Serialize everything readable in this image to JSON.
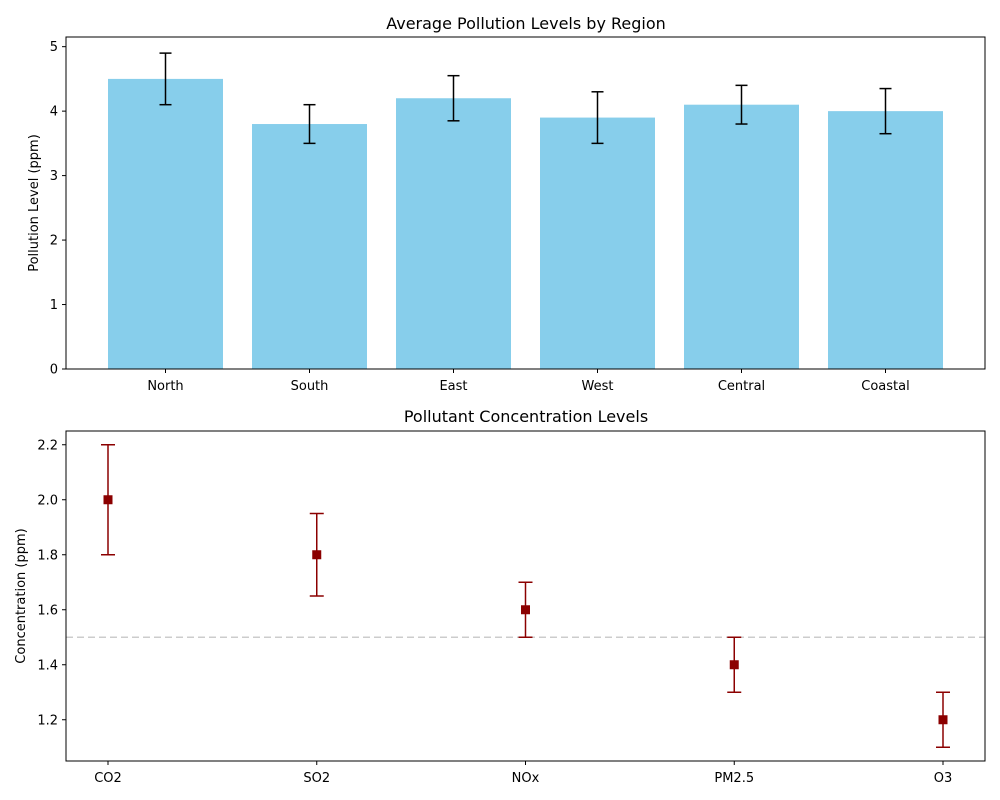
{
  "chart_data": [
    {
      "type": "bar",
      "title": "Average Pollution Levels by Region",
      "xlabel": "",
      "ylabel": "Pollution Level (ppm)",
      "categories": [
        "North",
        "South",
        "East",
        "West",
        "Central",
        "Coastal"
      ],
      "values": [
        4.5,
        3.8,
        4.2,
        3.9,
        4.1,
        4.0
      ],
      "errors": [
        0.4,
        0.3,
        0.35,
        0.4,
        0.3,
        0.35
      ],
      "ylim": [
        0,
        5.15
      ],
      "yticks": [
        0,
        1,
        2,
        3,
        4,
        5
      ],
      "bar_color": "#87ceeb",
      "error_color": "#000000",
      "grid": false
    },
    {
      "type": "scatter",
      "title": "Pollutant Concentration Levels",
      "xlabel": "",
      "ylabel": "Concentration (ppm)",
      "categories": [
        "CO2",
        "SO2",
        "NOx",
        "PM2.5",
        "O3"
      ],
      "values": [
        2.0,
        1.8,
        1.6,
        1.4,
        1.2
      ],
      "errors": [
        0.2,
        0.15,
        0.1,
        0.1,
        0.1
      ],
      "ylim": [
        1.05,
        2.25
      ],
      "yticks": [
        "1.2",
        "1.4",
        "1.6",
        "1.8",
        "2.0",
        "2.2"
      ],
      "marker": "square",
      "marker_color": "#8b0000",
      "error_color": "#8b0000",
      "reference_line": 1.5,
      "reference_line_color": "#cccccc",
      "grid": false
    }
  ]
}
